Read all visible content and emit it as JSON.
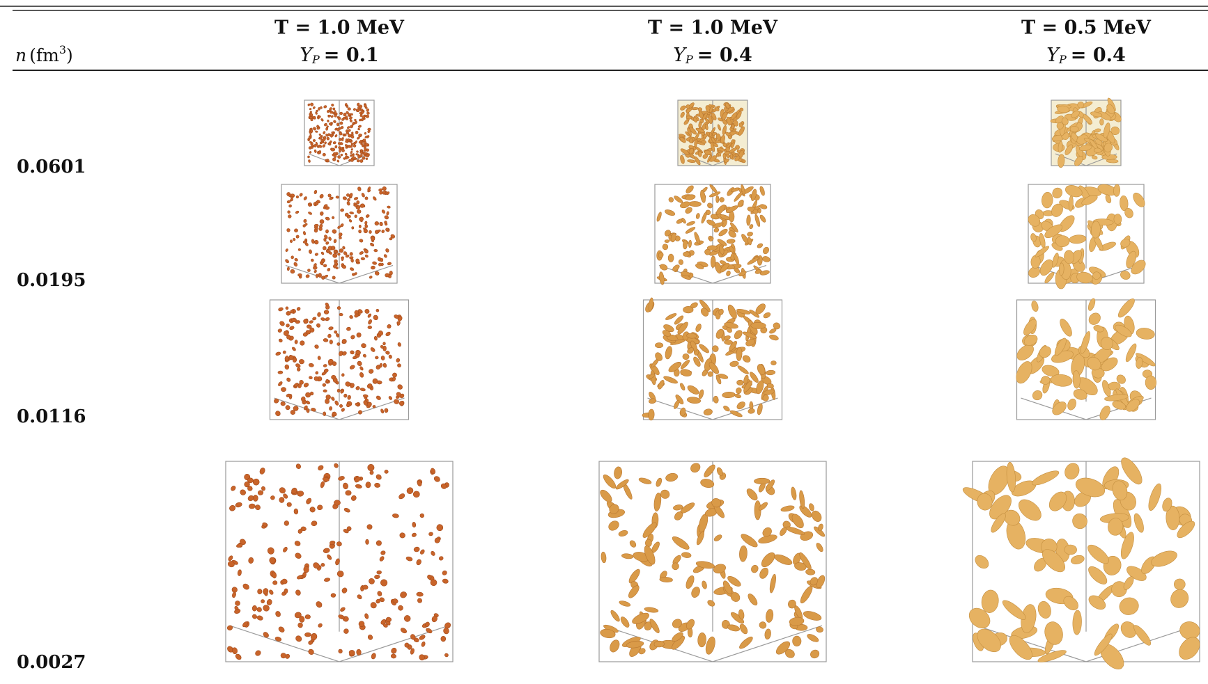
{
  "table": {
    "corner": {
      "symbol": "n",
      "unit": "(fm",
      "power": "3",
      "close": ")"
    },
    "columns": [
      {
        "temperature": "T = 1.0 MeV",
        "symbol": "Y",
        "subscript": "P",
        "value": "= 0.1"
      },
      {
        "temperature": "T = 1.0 MeV",
        "symbol": "Y",
        "subscript": "P",
        "value": "= 0.4"
      },
      {
        "temperature": "T = 0.5 MeV",
        "symbol": "Y",
        "subscript": "P",
        "value": "= 0.4"
      }
    ],
    "rows": [
      "0.0601",
      "0.0195",
      "0.0116",
      "0.0027"
    ]
  }
}
